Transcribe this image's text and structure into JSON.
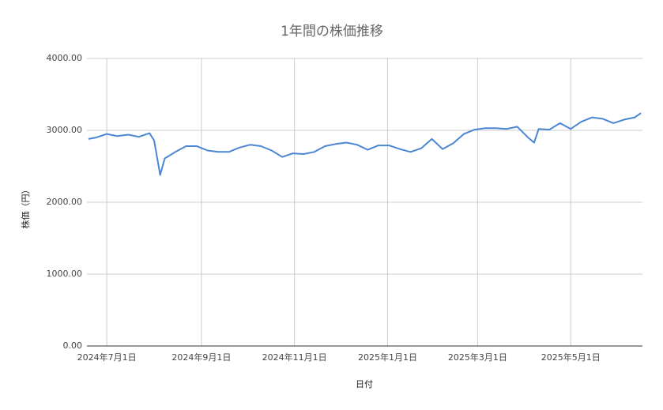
{
  "chart_data": {
    "type": "line",
    "title": "1年間の株価推移",
    "x_label": "日付",
    "y_label": "株価（円）",
    "x": [
      "2024-06-19",
      "2024-06-24",
      "2024-07-01",
      "2024-07-08",
      "2024-07-15",
      "2024-07-22",
      "2024-07-29",
      "2024-08-01",
      "2024-08-05",
      "2024-08-08",
      "2024-08-15",
      "2024-08-22",
      "2024-08-29",
      "2024-09-05",
      "2024-09-12",
      "2024-09-19",
      "2024-09-26",
      "2024-10-03",
      "2024-10-10",
      "2024-10-17",
      "2024-10-24",
      "2024-10-31",
      "2024-11-07",
      "2024-11-14",
      "2024-11-21",
      "2024-11-28",
      "2024-12-05",
      "2024-12-12",
      "2024-12-19",
      "2024-12-26",
      "2025-01-02",
      "2025-01-09",
      "2025-01-16",
      "2025-01-23",
      "2025-01-30",
      "2025-02-06",
      "2025-02-13",
      "2025-02-20",
      "2025-02-27",
      "2025-03-06",
      "2025-03-13",
      "2025-03-20",
      "2025-03-27",
      "2025-04-03",
      "2025-04-07",
      "2025-04-10",
      "2025-04-17",
      "2025-04-24",
      "2025-05-01",
      "2025-05-08",
      "2025-05-15",
      "2025-05-22",
      "2025-05-29",
      "2025-06-05",
      "2025-06-12",
      "2025-06-16"
    ],
    "series": [
      {
        "name": "株価",
        "color": "#4a86d4",
        "values": [
          2880,
          2900,
          2950,
          2920,
          2940,
          2910,
          2960,
          2860,
          2380,
          2610,
          2700,
          2780,
          2780,
          2720,
          2700,
          2700,
          2760,
          2800,
          2780,
          2720,
          2630,
          2680,
          2670,
          2700,
          2780,
          2810,
          2830,
          2800,
          2730,
          2790,
          2790,
          2740,
          2700,
          2750,
          2880,
          2740,
          2820,
          2950,
          3010,
          3030,
          3030,
          3020,
          3050,
          2900,
          2830,
          3020,
          3010,
          3100,
          3020,
          3120,
          3180,
          3160,
          3100,
          3150,
          3180,
          3240
        ]
      }
    ],
    "xlim": [
      "2024-06-18",
      "2025-06-17"
    ],
    "xticks": [
      {
        "value": "2024-07-01",
        "label": "2024年7月1日"
      },
      {
        "value": "2024-09-01",
        "label": "2024年9月1日"
      },
      {
        "value": "2024-11-01",
        "label": "2024年11月1日"
      },
      {
        "value": "2025-01-01",
        "label": "2025年1月1日"
      },
      {
        "value": "2025-03-01",
        "label": "2025年3月1日"
      },
      {
        "value": "2025-05-01",
        "label": "2025年5月1日"
      }
    ],
    "ylim": [
      0,
      4000
    ],
    "yticks": [
      {
        "value": 0,
        "label": "0.00"
      },
      {
        "value": 1000,
        "label": "1000.00"
      },
      {
        "value": 2000,
        "label": "2000.00"
      },
      {
        "value": 3000,
        "label": "3000.00"
      },
      {
        "value": 4000,
        "label": "4000.00"
      }
    ],
    "grid": true
  }
}
